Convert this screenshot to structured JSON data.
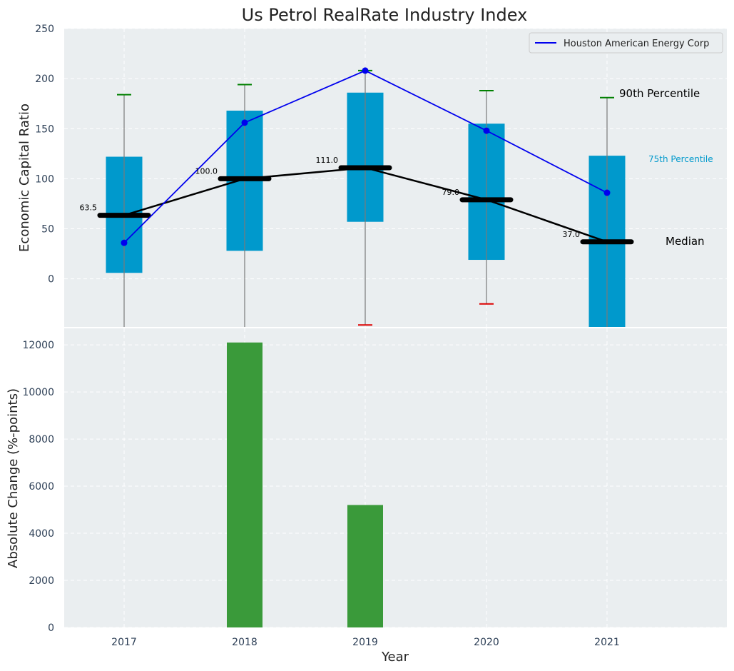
{
  "chart_data": [
    {
      "type": "box",
      "title": "Us Petrol RealRate Industry Index",
      "ylabel": "Economic Capital Ratio",
      "ylim": [
        -48,
        250
      ],
      "yticks": [
        "0",
        "50",
        "100",
        "150",
        "200",
        "250"
      ],
      "years": [
        "2017",
        "2018",
        "2019",
        "2020",
        "2021"
      ],
      "box_low": [
        6,
        28,
        57,
        19,
        -48
      ],
      "box_high": [
        122,
        168,
        186,
        155,
        123
      ],
      "median": [
        63.5,
        100.0,
        111.0,
        79.0,
        37.0
      ],
      "median_labels": [
        "63.5",
        "100.0",
        "111.0",
        "79.0",
        "37.0"
      ],
      "whisker_high": [
        184,
        194,
        208,
        188,
        181
      ],
      "whisker_low": [
        null,
        null,
        -46,
        -25,
        null
      ],
      "series": [
        {
          "name": "Houston American Energy Corp",
          "values": [
            36,
            156,
            208,
            148,
            86
          ],
          "color": "#0000ee"
        }
      ],
      "annotations": {
        "p90": "90th Percentile",
        "p75": "75th Percentile",
        "median": "Median"
      },
      "legend": {
        "position": "top-right"
      }
    },
    {
      "type": "bar",
      "xlabel": "Year",
      "ylabel": "Absolute Change (%-points)",
      "categories": [
        "2017",
        "2018",
        "2019",
        "2020",
        "2021"
      ],
      "values": [
        0,
        12100,
        5200,
        0,
        0
      ],
      "ylim": [
        0,
        12700
      ],
      "yticks": [
        "0",
        "2000",
        "4000",
        "6000",
        "8000",
        "10000",
        "12000"
      ]
    }
  ],
  "colors": {
    "plot_bg": "#eaeef0",
    "box": "#0099cc",
    "median": "#000000",
    "series": "#0000ee",
    "bar": "#3a9a3a",
    "whisker_cap_high": "#008000",
    "whisker_cap_low": "#dd0000",
    "p75_text": "#0099cc",
    "tick_text": "#2e4057"
  }
}
